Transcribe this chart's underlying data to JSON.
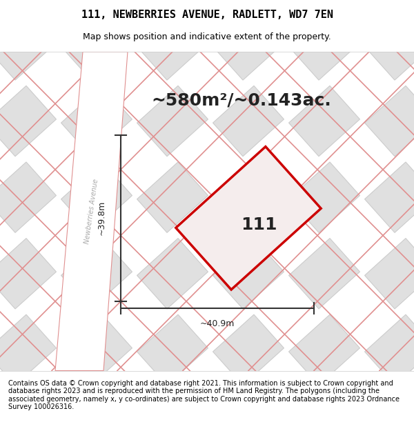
{
  "title": "111, NEWBERRIES AVENUE, RADLETT, WD7 7EN",
  "subtitle": "Map shows position and indicative extent of the property.",
  "area_text": "~580m²/~0.143ac.",
  "label_111": "111",
  "dim_width": "~40.9m",
  "dim_height": "~39.8m",
  "road_label": "Newberries Avenue",
  "footer": "Contains OS data © Crown copyright and database right 2021. This information is subject to Crown copyright and database rights 2023 and is reproduced with the permission of HM Land Registry. The polygons (including the associated geometry, namely x, y co-ordinates) are subject to Crown copyright and database rights 2023 Ordnance Survey 100026316.",
  "bg_color": "#f5f5f5",
  "map_bg": "#f0eeee",
  "plot_color": "#cc0000",
  "plot_fill": "#f5eded",
  "road_color": "#ffffff",
  "grid_line_color": "#e8c8c8",
  "parcel_fill": "#e8e8e8",
  "parcel_edge": "#cccccc",
  "title_fontsize": 11,
  "subtitle_fontsize": 9,
  "area_fontsize": 18,
  "label_fontsize": 18,
  "footer_fontsize": 7
}
